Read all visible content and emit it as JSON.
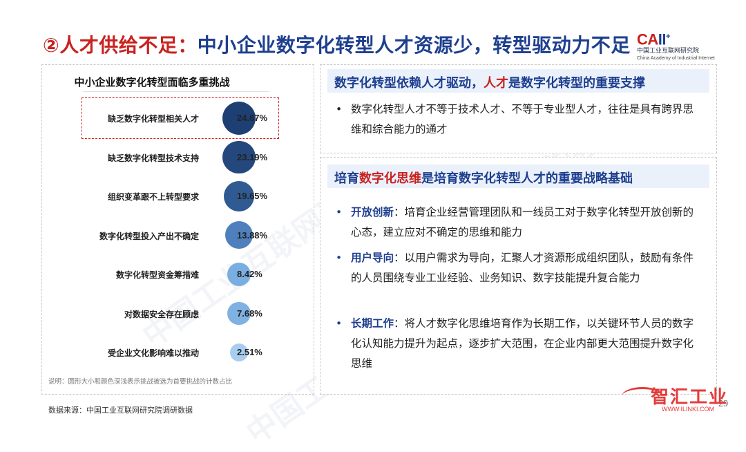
{
  "header": {
    "title_prefix": "②人才供给不足：",
    "title_main": "中小企业数字化转型人才资源少，转型驱动力不足"
  },
  "logo": {
    "mark_a": "CA",
    "mark_rest": "II",
    "plus": "+",
    "name_cn": "中国工业互联网研究院",
    "name_en": "China Academy of Industrial Internet"
  },
  "left_panel": {
    "title": "中小企业数字化转型面临多重挑战",
    "items": [
      {
        "label": "缺乏数字化转型相关人才",
        "pct_text": "24.67%",
        "value": 24.67,
        "color": "#1e3f73",
        "highlighted": true
      },
      {
        "label": "缺乏数字化转型技术支持",
        "pct_text": "23.19%",
        "value": 23.19,
        "color": "#24487e",
        "highlighted": false
      },
      {
        "label": "组织变革跟不上转型要求",
        "pct_text": "19.65%",
        "value": 19.65,
        "color": "#305a92",
        "highlighted": false
      },
      {
        "label": "数字化转型投入产出不确定",
        "pct_text": "13.88%",
        "value": 13.88,
        "color": "#4f80bd",
        "highlighted": false
      },
      {
        "label": "数字化转型资金筹措难",
        "pct_text": "8.42%",
        "value": 8.42,
        "color": "#7aaee0",
        "highlighted": false
      },
      {
        "label": "对数据安全存在顾虑",
        "pct_text": "7.68%",
        "value": 7.68,
        "color": "#7fb2e2",
        "highlighted": false
      },
      {
        "label": "受企业文化影响难以推动",
        "pct_text": "2.51%",
        "value": 2.51,
        "color": "#a9cdef",
        "highlighted": false
      }
    ],
    "note": "说明：圆形大小和颜色深浅表示挑战被选为首要挑战的计数占比"
  },
  "panel1": {
    "head_a": "数字化转型依赖人才驱动，",
    "head_hl": "人才",
    "head_b": "是数字化转型的重要支撑",
    "bullet": "数字化转型人才不等于技术人才、不等于专业型人才，往往是具有跨界思维和综合能力的通才"
  },
  "panel2": {
    "head_a": "培育",
    "head_hl": "数字化思维",
    "head_b": "是培育数字化转型人才的重要战略基础",
    "bullets": [
      {
        "kw": "开放创新",
        "text": "：培育企业经营管理团队和一线员工对于数字化转型开放创新的心态，建立应对不确定的思维和能力"
      },
      {
        "kw": "用户导向",
        "text": "：以用户需求为导向，汇聚人才资源形成组织团队，鼓励有条件的人员围绕专业工业经验、业务知识、数字技能提升复合能力"
      },
      {
        "kw": "长期工作",
        "text": "：将人才数字化思维培育作为长期工作，以关键环节人员的数字化认知能力提升为起点，逐步扩大范围，在企业内部更大范围提升数字化思维"
      }
    ]
  },
  "footer": {
    "source": "数据来源：中国工业互联网研究院调研数据",
    "page": "29"
  },
  "watermark": {
    "text_a": "中国工业互联网研究院",
    "stamp_text": "智汇工业",
    "stamp_url": "WWW.ILINKI.COM"
  }
}
